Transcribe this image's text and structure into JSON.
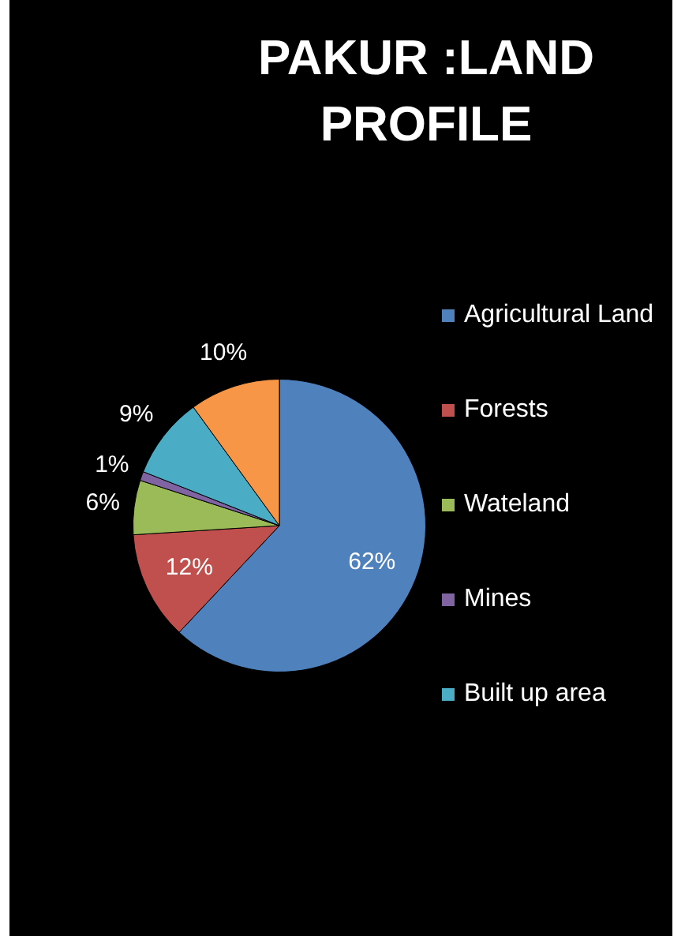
{
  "chart_data": {
    "type": "pie",
    "title": "PAKUR :LAND PROFILE",
    "categories": [
      "Agricultural Land",
      "Forests",
      "Wateland",
      "Mines",
      "Built up area",
      null
    ],
    "values": [
      62,
      12,
      6,
      1,
      9,
      10
    ],
    "colors": [
      "#4f81bd",
      "#c0504d",
      "#9bbb59",
      "#8064a2",
      "#4bacc6",
      "#f79646"
    ],
    "value_labels": [
      "62%",
      "12%",
      "6%",
      "1%",
      "9%",
      "10%"
    ],
    "legend": "right"
  }
}
